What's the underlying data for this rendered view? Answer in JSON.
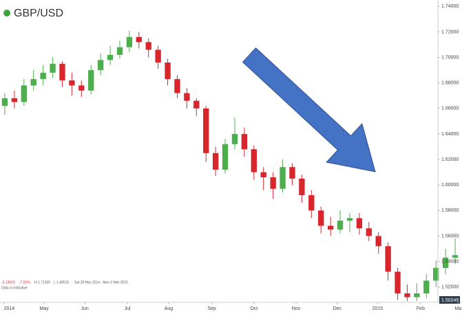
{
  "chart_data": {
    "type": "candlestick",
    "title": "GBP/USD",
    "categories": [
      null,
      null,
      null,
      null,
      null,
      null,
      null,
      null,
      null,
      null,
      null,
      null,
      null,
      null,
      null,
      null,
      null,
      null,
      null,
      null,
      null,
      null,
      null,
      null,
      null,
      null,
      null,
      null,
      null,
      null,
      null,
      null,
      null,
      null,
      null,
      null,
      null,
      null,
      null,
      null,
      null,
      null,
      null,
      null,
      null,
      null,
      null,
      null
    ],
    "up_color": "#4cae4c",
    "down_color": "#d9262c",
    "open": [
      1.662,
      1.668,
      1.665,
      1.678,
      1.683,
      1.688,
      1.695,
      1.682,
      1.678,
      1.674,
      1.69,
      1.698,
      1.702,
      1.708,
      1.716,
      1.712,
      1.706,
      1.696,
      1.683,
      1.672,
      1.666,
      1.66,
      1.625,
      1.612,
      1.632,
      1.64,
      1.628,
      1.61,
      1.606,
      1.597,
      1.614,
      1.605,
      1.592,
      1.58,
      1.568,
      1.565,
      1.572,
      1.574,
      1.566,
      1.56,
      1.552,
      1.532,
      1.515,
      1.512,
      1.515,
      1.525,
      1.535,
      1.543
    ],
    "high": [
      1.672,
      1.674,
      1.683,
      1.69,
      1.694,
      1.7,
      1.697,
      1.688,
      1.682,
      1.694,
      1.703,
      1.709,
      1.713,
      1.721,
      1.72,
      1.715,
      1.709,
      1.699,
      1.686,
      1.676,
      1.668,
      1.662,
      1.63,
      1.636,
      1.653,
      1.645,
      1.631,
      1.614,
      1.61,
      1.62,
      1.617,
      1.608,
      1.596,
      1.583,
      1.575,
      1.58,
      1.578,
      1.578,
      1.571,
      1.563,
      1.555,
      1.535,
      1.522,
      1.523,
      1.53,
      1.541,
      1.55,
      1.558
    ],
    "low": [
      1.655,
      1.66,
      1.662,
      1.674,
      1.678,
      1.684,
      1.677,
      1.67,
      1.669,
      1.671,
      1.686,
      1.694,
      1.699,
      1.704,
      1.707,
      1.7,
      1.691,
      1.678,
      1.668,
      1.66,
      1.654,
      1.618,
      1.607,
      1.609,
      1.628,
      1.622,
      1.604,
      1.596,
      1.589,
      1.594,
      1.6,
      1.586,
      1.574,
      1.562,
      1.56,
      1.562,
      1.563,
      1.561,
      1.556,
      1.546,
      1.525,
      1.51,
      1.509,
      1.509,
      1.511,
      1.52,
      1.53,
      1.538
    ],
    "close": [
      1.668,
      1.665,
      1.678,
      1.683,
      1.688,
      1.695,
      1.682,
      1.678,
      1.674,
      1.69,
      1.698,
      1.702,
      1.708,
      1.716,
      1.712,
      1.706,
      1.696,
      1.683,
      1.672,
      1.666,
      1.66,
      1.625,
      1.612,
      1.632,
      1.64,
      1.628,
      1.61,
      1.606,
      1.597,
      1.614,
      1.605,
      1.592,
      1.58,
      1.568,
      1.565,
      1.572,
      1.574,
      1.566,
      1.56,
      1.552,
      1.532,
      1.515,
      1.512,
      1.515,
      1.525,
      1.535,
      1.543,
      1.545
    ],
    "ylim": [
      1.508,
      1.745
    ],
    "yticks": [
      {
        "value": 1.74,
        "label": "1.74000"
      },
      {
        "value": 1.72,
        "label": "1.72000"
      },
      {
        "value": 1.7,
        "label": "1.70000"
      },
      {
        "value": 1.68,
        "label": "1.68000"
      },
      {
        "value": 1.66,
        "label": "1.66000"
      },
      {
        "value": 1.64,
        "label": "1.64000"
      },
      {
        "value": 1.62,
        "label": "1.62000"
      },
      {
        "value": 1.6,
        "label": "1.60000"
      },
      {
        "value": 1.58,
        "label": "1.58000"
      },
      {
        "value": 1.56,
        "label": "1.56000"
      },
      {
        "value": 1.54,
        "label": "1.54000"
      },
      {
        "value": 1.52,
        "label": "1.52000"
      }
    ],
    "xlim": [
      0,
      48
    ],
    "xticks": [
      {
        "value": 0.4,
        "label": "2014"
      },
      {
        "value": 4.6,
        "label": "May"
      },
      {
        "value": 8.85,
        "label": "Jun"
      },
      {
        "value": 13.3,
        "label": "Jul"
      },
      {
        "value": 17.6,
        "label": "Aug"
      },
      {
        "value": 22.1,
        "label": "Sep"
      },
      {
        "value": 26.5,
        "label": "Oct"
      },
      {
        "value": 30.9,
        "label": "Nov"
      },
      {
        "value": 35.2,
        "label": "Dec"
      },
      {
        "value": 39.4,
        "label": "2015"
      },
      {
        "value": 43.9,
        "label": "Feb"
      },
      {
        "value": 47.8,
        "label": "Ma"
      }
    ],
    "grid": false,
    "last_price": "1.50245",
    "stats": {
      "change": "-0.13020",
      "change_pct": "-7.81%",
      "high": "H 1.71920",
      "low": "L 1.49515",
      "range": "Sat 29 Mar 2014 - Mon 2 Mar 2015",
      "note": "Data is indicative"
    }
  }
}
